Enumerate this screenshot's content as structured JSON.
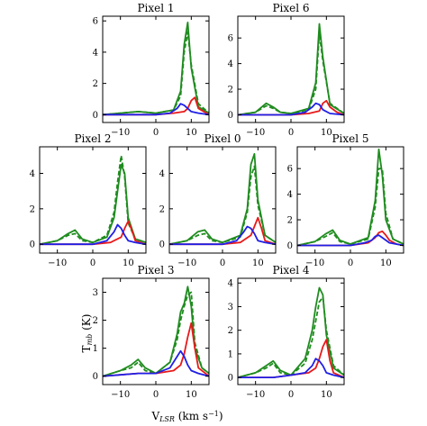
{
  "figure": {
    "xlabel": "V$_{LSR}$ (km s$^{-1}$)",
    "xlabel_main": "V",
    "xlabel_sub": "LSR",
    "xlabel_unit": " (km s",
    "xlabel_sup": "−1",
    "xlabel_close": ")",
    "ylabel_main": "T",
    "ylabel_sub": "mb",
    "ylabel_unit": " (K)"
  },
  "colors": {
    "green": "#1f8c1f",
    "red": "#e8191a",
    "blue": "#1f1fe6"
  },
  "chart_data": [
    {
      "type": "line",
      "title": "Pixel 1",
      "xlim": [
        -15,
        15
      ],
      "ylim": [
        -0.5,
        6.3
      ],
      "xticks": [
        -10,
        0,
        10
      ],
      "yticks": [
        0,
        2,
        4,
        6
      ],
      "series": [
        {
          "color": "green",
          "style": "solid",
          "x": [
            -15,
            -10,
            -5,
            0,
            5,
            7,
            8,
            9,
            10,
            12,
            15
          ],
          "y": [
            0,
            0.1,
            0.2,
            0.1,
            0.3,
            1.5,
            4.5,
            5.9,
            3.0,
            0.5,
            0.1
          ]
        },
        {
          "color": "green",
          "style": "dashed",
          "x": [
            -15,
            -10,
            -5,
            0,
            5,
            7,
            8,
            9,
            10,
            12,
            15
          ],
          "y": [
            0,
            0.1,
            0.2,
            0.1,
            0.3,
            1.2,
            4.0,
            5.3,
            3.2,
            0.7,
            0.1
          ]
        },
        {
          "color": "red",
          "style": "solid",
          "x": [
            -15,
            -5,
            0,
            5,
            8,
            9,
            10,
            11,
            12,
            15
          ],
          "y": [
            0,
            0,
            0,
            0.1,
            0.2,
            0.4,
            0.9,
            1.1,
            0.4,
            0
          ]
        },
        {
          "color": "blue",
          "style": "solid",
          "x": [
            -15,
            -5,
            0,
            4,
            6,
            7,
            8,
            9,
            10,
            12,
            15
          ],
          "y": [
            0,
            0,
            0,
            0.1,
            0.4,
            0.7,
            0.6,
            0.4,
            0.2,
            0.1,
            0
          ]
        }
      ]
    },
    {
      "type": "line",
      "title": "Pixel 6",
      "xlim": [
        -15,
        15
      ],
      "ylim": [
        -0.6,
        7.7
      ],
      "xticks": [
        -10,
        0,
        10
      ],
      "yticks": [
        0,
        2,
        4,
        6
      ],
      "series": [
        {
          "color": "green",
          "style": "solid",
          "x": [
            -15,
            -10,
            -7,
            -5,
            -3,
            0,
            5,
            7,
            8,
            9,
            11,
            15
          ],
          "y": [
            0,
            0.2,
            0.9,
            0.6,
            0.2,
            0.1,
            0.5,
            2.5,
            7.1,
            4.5,
            0.8,
            0.1
          ]
        },
        {
          "color": "green",
          "style": "dashed",
          "x": [
            -15,
            -10,
            -7,
            -5,
            -3,
            0,
            5,
            7,
            8,
            9,
            11,
            15
          ],
          "y": [
            0,
            0.2,
            0.7,
            0.5,
            0.2,
            0.1,
            0.4,
            2.0,
            6.4,
            4.2,
            0.9,
            0.1
          ]
        },
        {
          "color": "red",
          "style": "solid",
          "x": [
            -15,
            -5,
            0,
            5,
            8,
            9,
            10,
            11,
            13,
            15
          ],
          "y": [
            0,
            0,
            0,
            0.1,
            0.3,
            0.9,
            1.1,
            0.6,
            0.2,
            0
          ]
        },
        {
          "color": "blue",
          "style": "solid",
          "x": [
            -15,
            -5,
            0,
            4,
            6,
            7,
            8,
            9,
            11,
            15
          ],
          "y": [
            0,
            0,
            0,
            0.2,
            0.6,
            0.9,
            0.8,
            0.4,
            0.1,
            0
          ]
        }
      ]
    },
    {
      "type": "line",
      "title": "Pixel 2",
      "xlim": [
        -15,
        15
      ],
      "ylim": [
        -0.5,
        5.5
      ],
      "xticks": [
        -10,
        0,
        10
      ],
      "yticks": [
        0,
        2,
        4
      ],
      "series": [
        {
          "color": "green",
          "style": "solid",
          "x": [
            -15,
            -10,
            -7,
            -5,
            -3,
            0,
            4,
            6,
            7,
            8,
            9,
            10,
            12,
            15
          ],
          "y": [
            0,
            0.2,
            0.6,
            0.8,
            0.3,
            0.1,
            0.4,
            1.5,
            3.0,
            4.5,
            4.0,
            1.5,
            0.3,
            0.1
          ]
        },
        {
          "color": "green",
          "style": "dashed",
          "x": [
            -15,
            -10,
            -7,
            -5,
            -3,
            0,
            4,
            6,
            7,
            8,
            9,
            10,
            12,
            15
          ],
          "y": [
            0,
            0.2,
            0.5,
            0.6,
            0.2,
            0.1,
            0.5,
            1.8,
            3.5,
            5.0,
            3.8,
            1.2,
            0.3,
            0.1
          ]
        },
        {
          "color": "red",
          "style": "solid",
          "x": [
            -15,
            -5,
            0,
            5,
            8,
            9,
            10,
            11,
            12,
            15
          ],
          "y": [
            0,
            0,
            0,
            0.1,
            0.4,
            0.9,
            1.3,
            0.8,
            0.2,
            0
          ]
        },
        {
          "color": "blue",
          "style": "solid",
          "x": [
            -15,
            -5,
            0,
            4,
            6,
            7,
            8,
            9,
            10,
            12,
            15
          ],
          "y": [
            0,
            0,
            0,
            0.2,
            0.7,
            1.1,
            0.9,
            0.5,
            0.2,
            0.1,
            0
          ]
        }
      ]
    },
    {
      "type": "line",
      "title": "Pixel 0",
      "xlim": [
        -15,
        15
      ],
      "ylim": [
        -0.5,
        5.5
      ],
      "xticks": [
        -10,
        0,
        10
      ],
      "yticks": [
        0,
        2,
        4
      ],
      "series": [
        {
          "color": "green",
          "style": "solid",
          "x": [
            -15,
            -10,
            -7,
            -5,
            -3,
            0,
            5,
            7,
            8,
            9,
            10,
            12,
            15
          ],
          "y": [
            0,
            0.2,
            0.7,
            0.8,
            0.3,
            0.1,
            0.5,
            2.0,
            4.5,
            5.1,
            2.5,
            0.5,
            0.1
          ]
        },
        {
          "color": "green",
          "style": "dashed",
          "x": [
            -15,
            -10,
            -7,
            -5,
            -3,
            0,
            5,
            7,
            8,
            9,
            10,
            12,
            15
          ],
          "y": [
            0,
            0.2,
            0.5,
            0.6,
            0.2,
            0.1,
            0.4,
            1.8,
            3.8,
            4.4,
            2.2,
            0.5,
            0.1
          ]
        },
        {
          "color": "red",
          "style": "solid",
          "x": [
            -15,
            -5,
            0,
            5,
            8,
            9,
            10,
            11,
            12,
            15
          ],
          "y": [
            0,
            0,
            0,
            0.1,
            0.5,
            1.0,
            1.5,
            0.9,
            0.2,
            0
          ]
        },
        {
          "color": "blue",
          "style": "solid",
          "x": [
            -15,
            -5,
            0,
            4,
            6,
            7,
            8,
            9,
            10,
            12,
            15
          ],
          "y": [
            0,
            0,
            0,
            0.2,
            0.7,
            1.0,
            0.9,
            0.6,
            0.2,
            0.1,
            0
          ]
        }
      ]
    },
    {
      "type": "line",
      "title": "Pixel 5",
      "xlim": [
        -15,
        15
      ],
      "ylim": [
        -0.6,
        7.7
      ],
      "xticks": [
        -10,
        0,
        10
      ],
      "yticks": [
        0,
        2,
        4,
        6
      ],
      "series": [
        {
          "color": "green",
          "style": "solid",
          "x": [
            -15,
            -10,
            -7,
            -5,
            -3,
            0,
            5,
            7,
            8,
            9,
            10,
            12,
            15
          ],
          "y": [
            0,
            0.3,
            0.9,
            1.2,
            0.4,
            0.1,
            0.6,
            3.5,
            7.5,
            5.5,
            2.0,
            0.5,
            0.1
          ]
        },
        {
          "color": "green",
          "style": "dashed",
          "x": [
            -15,
            -10,
            -7,
            -5,
            -3,
            0,
            5,
            7,
            8,
            9,
            10,
            12,
            15
          ],
          "y": [
            0,
            0.3,
            0.7,
            1.0,
            0.3,
            0.1,
            0.5,
            3.0,
            6.0,
            6.0,
            2.5,
            0.5,
            0.1
          ]
        },
        {
          "color": "red",
          "style": "solid",
          "x": [
            -15,
            -5,
            0,
            5,
            7,
            8,
            9,
            10,
            11,
            13,
            15
          ],
          "y": [
            0,
            0,
            0,
            0.2,
            0.6,
            1.0,
            1.1,
            0.8,
            0.4,
            0.1,
            0
          ]
        },
        {
          "color": "blue",
          "style": "solid",
          "x": [
            -15,
            -5,
            0,
            4,
            6,
            7,
            8,
            9,
            11,
            15
          ],
          "y": [
            0,
            0,
            0,
            0.2,
            0.4,
            0.7,
            0.8,
            0.6,
            0.2,
            0
          ]
        }
      ]
    },
    {
      "type": "line",
      "title": "Pixel 3",
      "xlim": [
        -15,
        15
      ],
      "ylim": [
        -0.3,
        3.5
      ],
      "xticks": [
        -10,
        0,
        10
      ],
      "yticks": [
        0,
        1,
        2,
        3
      ],
      "series": [
        {
          "color": "green",
          "style": "solid",
          "x": [
            -15,
            -10,
            -7,
            -5,
            -3,
            0,
            4,
            6,
            7,
            8,
            9,
            10,
            11,
            13,
            15
          ],
          "y": [
            0,
            0.2,
            0.4,
            0.6,
            0.3,
            0.1,
            0.5,
            1.5,
            2.3,
            2.6,
            3.2,
            2.5,
            1.0,
            0.3,
            0.1
          ]
        },
        {
          "color": "green",
          "style": "dashed",
          "x": [
            -15,
            -10,
            -7,
            -5,
            -3,
            0,
            4,
            6,
            7,
            8,
            9,
            10,
            11,
            13,
            15
          ],
          "y": [
            0,
            0.2,
            0.3,
            0.5,
            0.2,
            0.1,
            0.5,
            1.3,
            2.0,
            2.5,
            2.9,
            3.0,
            1.2,
            0.3,
            0.1
          ]
        },
        {
          "color": "red",
          "style": "solid",
          "x": [
            -15,
            -5,
            0,
            5,
            7,
            8,
            9,
            10,
            11,
            12,
            15
          ],
          "y": [
            0,
            0.1,
            0.1,
            0.2,
            0.4,
            0.8,
            1.4,
            1.9,
            1.0,
            0.3,
            0
          ]
        },
        {
          "color": "blue",
          "style": "solid",
          "x": [
            -15,
            -5,
            0,
            4,
            6,
            7,
            8,
            9,
            10,
            12,
            15
          ],
          "y": [
            0,
            0.1,
            0.1,
            0.3,
            0.7,
            0.9,
            0.7,
            0.4,
            0.2,
            0.1,
            0
          ]
        }
      ]
    },
    {
      "type": "line",
      "title": "Pixel 4",
      "xlim": [
        -15,
        15
      ],
      "ylim": [
        -0.3,
        4.2
      ],
      "xticks": [
        -10,
        0,
        10
      ],
      "yticks": [
        0,
        1,
        2,
        3,
        4
      ],
      "series": [
        {
          "color": "green",
          "style": "solid",
          "x": [
            -15,
            -10,
            -7,
            -5,
            -3,
            0,
            4,
            6,
            7,
            8,
            9,
            10,
            12,
            15
          ],
          "y": [
            0,
            0.2,
            0.5,
            0.7,
            0.3,
            0.1,
            0.8,
            2.0,
            3.0,
            3.8,
            3.5,
            1.8,
            0.4,
            0.1
          ]
        },
        {
          "color": "green",
          "style": "dashed",
          "x": [
            -15,
            -10,
            -7,
            -5,
            -3,
            0,
            4,
            6,
            7,
            8,
            9,
            10,
            12,
            15
          ],
          "y": [
            0,
            0.2,
            0.4,
            0.6,
            0.2,
            0.1,
            0.6,
            1.6,
            2.4,
            3.2,
            3.4,
            2.0,
            0.5,
            0.1
          ]
        },
        {
          "color": "red",
          "style": "solid",
          "x": [
            -15,
            -5,
            0,
            5,
            7,
            8,
            9,
            10,
            11,
            12,
            15
          ],
          "y": [
            0,
            0,
            0.1,
            0.2,
            0.4,
            0.8,
            1.3,
            1.6,
            0.7,
            0.2,
            0
          ]
        },
        {
          "color": "blue",
          "style": "solid",
          "x": [
            -15,
            -5,
            0,
            4,
            6,
            7,
            8,
            9,
            10,
            12,
            15
          ],
          "y": [
            0,
            0,
            0.1,
            0.2,
            0.5,
            0.8,
            0.7,
            0.5,
            0.2,
            0.1,
            0
          ]
        }
      ]
    }
  ]
}
